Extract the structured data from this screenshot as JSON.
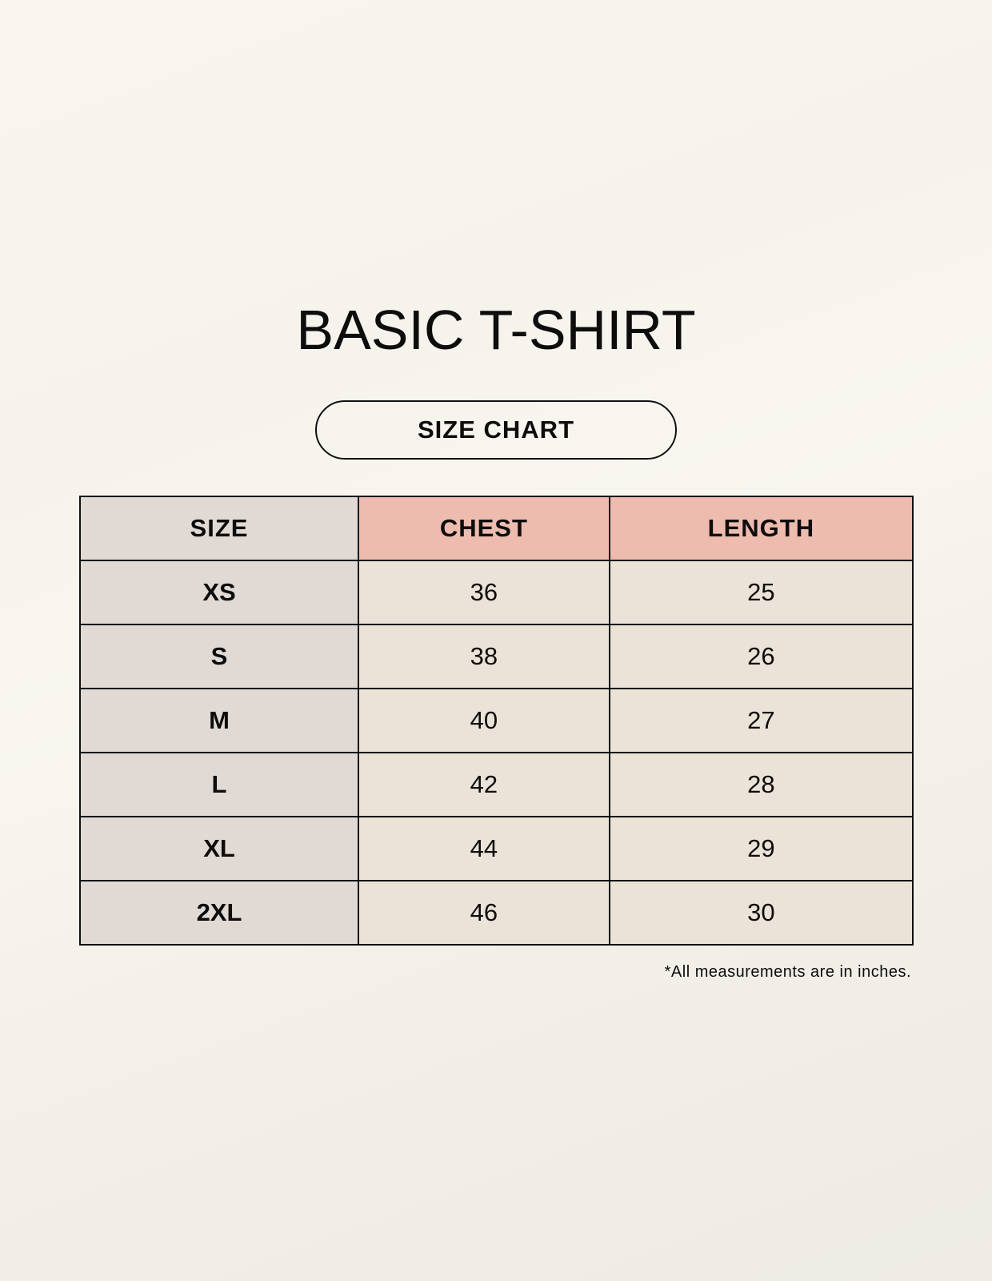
{
  "title": "BASIC T-SHIRT",
  "subtitle": "SIZE CHART",
  "table": {
    "headers": [
      "SIZE",
      "CHEST",
      "LENGTH"
    ],
    "rows": [
      [
        "XS",
        "36",
        "25"
      ],
      [
        "S",
        "38",
        "26"
      ],
      [
        "M",
        "40",
        "27"
      ],
      [
        "L",
        "42",
        "28"
      ],
      [
        "XL",
        "44",
        "29"
      ],
      [
        "2XL",
        "46",
        "30"
      ]
    ]
  },
  "note": "*All measurements are in inches.",
  "colors": {
    "size_column": "#e0d9d4",
    "header_accent": "#eebcaf",
    "data_cells": "#ebe2d8"
  }
}
